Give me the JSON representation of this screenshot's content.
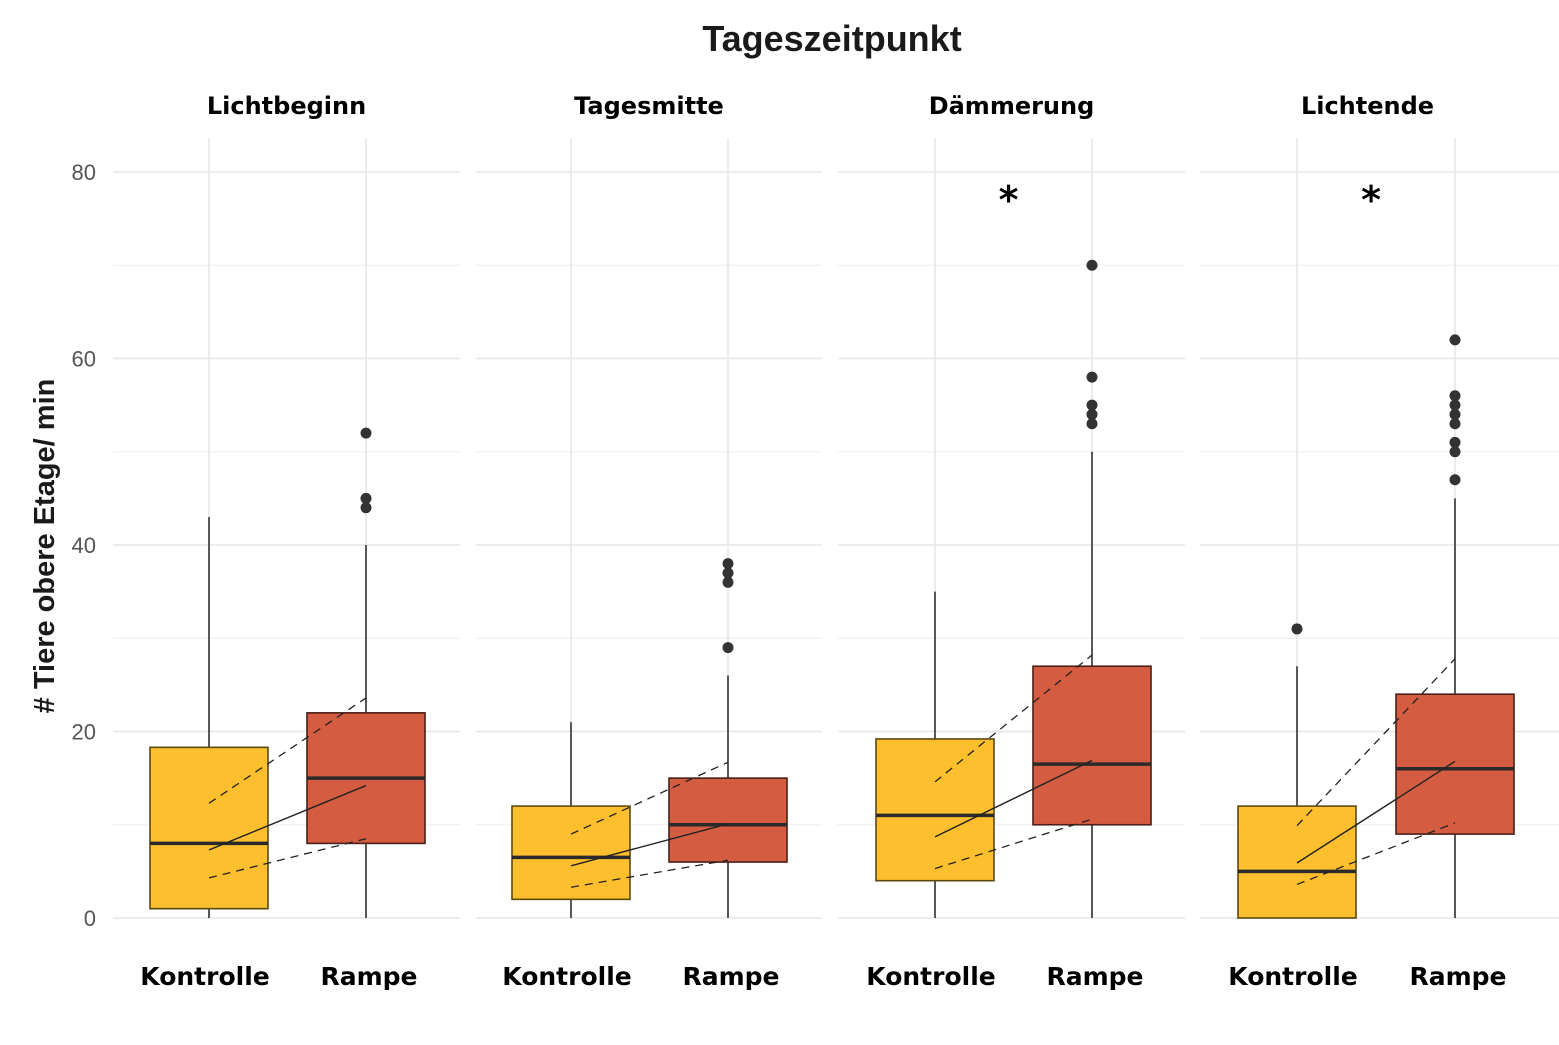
{
  "chart_data": {
    "type": "boxplot",
    "title": "Tageszeitpunkt",
    "ylabel": "# Tiere obere Etage/ min",
    "xlabel": "",
    "ylim": [
      0,
      80
    ],
    "yticks": [
      0,
      20,
      40,
      60,
      80
    ],
    "grid": true,
    "legend": "none",
    "colors": {
      "Kontrolle": "#FDBF2D",
      "Rampe": "#D35C41"
    },
    "categories": [
      "Kontrolle",
      "Rampe"
    ],
    "facets": [
      {
        "label": "Lichtbeginn",
        "significance": "",
        "boxes": [
          {
            "group": "Kontrolle",
            "whisker_low": 0,
            "q1": 1,
            "median": 8,
            "q3": 18.3,
            "whisker_high": 43,
            "outliers": []
          },
          {
            "group": "Rampe",
            "whisker_low": 0,
            "q1": 8,
            "median": 15,
            "q3": 22,
            "whisker_high": 40,
            "outliers": [
              44,
              45,
              52
            ]
          }
        ],
        "mean_line": [
          7.3,
          14.2
        ],
        "ci_upper": [
          12.3,
          23.6
        ],
        "ci_lower": [
          4.3,
          8.5
        ]
      },
      {
        "label": "Tagesmitte",
        "significance": "",
        "boxes": [
          {
            "group": "Kontrolle",
            "whisker_low": 0,
            "q1": 2,
            "median": 6.5,
            "q3": 12,
            "whisker_high": 21,
            "outliers": []
          },
          {
            "group": "Rampe",
            "whisker_low": 0,
            "q1": 6,
            "median": 10,
            "q3": 15,
            "whisker_high": 26,
            "outliers": [
              29,
              36,
              37,
              38
            ]
          }
        ],
        "mean_line": [
          5.6,
          10.1
        ],
        "ci_upper": [
          9.0,
          16.7
        ],
        "ci_lower": [
          3.3,
          6.2
        ]
      },
      {
        "label": "Dämmerung",
        "significance": "*",
        "boxes": [
          {
            "group": "Kontrolle",
            "whisker_low": 0,
            "q1": 4,
            "median": 11,
            "q3": 19.2,
            "whisker_high": 35,
            "outliers": []
          },
          {
            "group": "Rampe",
            "whisker_low": 0,
            "q1": 10,
            "median": 16.5,
            "q3": 27,
            "whisker_high": 50,
            "outliers": [
              53,
              54,
              55,
              58,
              70
            ]
          }
        ],
        "mean_line": [
          8.7,
          16.9
        ],
        "ci_upper": [
          14.6,
          28.2
        ],
        "ci_lower": [
          5.3,
          10.6
        ]
      },
      {
        "label": "Lichtende",
        "significance": "*",
        "boxes": [
          {
            "group": "Kontrolle",
            "whisker_low": 0,
            "q1": 0,
            "median": 5,
            "q3": 12,
            "whisker_high": 27,
            "outliers": [
              31
            ]
          },
          {
            "group": "Rampe",
            "whisker_low": 0,
            "q1": 9,
            "median": 16,
            "q3": 24,
            "whisker_high": 45,
            "outliers": [
              47,
              50,
              51,
              53,
              54,
              55,
              56,
              62
            ]
          }
        ],
        "mean_line": [
          5.9,
          16.8
        ],
        "ci_upper": [
          9.9,
          27.8
        ],
        "ci_lower": [
          3.6,
          10.2
        ]
      }
    ]
  }
}
